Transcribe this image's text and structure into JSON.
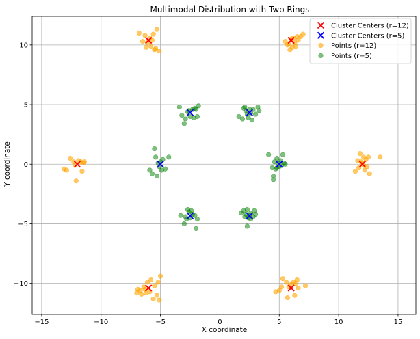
{
  "chart_data": {
    "type": "scatter",
    "title": "Multimodal Distribution with Two Rings",
    "xlabel": "X coordinate",
    "ylabel": "Y coordinate",
    "xlim": [
      -15.8,
      16.5
    ],
    "ylim": [
      -12.6,
      12.4
    ],
    "xticks": [
      -15,
      -10,
      -5,
      0,
      5,
      10,
      15
    ],
    "yticks": [
      -10,
      -5,
      0,
      5,
      10
    ],
    "grid": true,
    "legend_position": "upper right",
    "series": [
      {
        "name": "Cluster Centers (r=12)",
        "marker": "x",
        "color": "#ff0000",
        "points": [
          [
            12,
            0
          ],
          [
            6,
            10.39
          ],
          [
            -6,
            10.39
          ],
          [
            -12,
            0
          ],
          [
            -6,
            -10.39
          ],
          [
            6,
            -10.39
          ]
        ]
      },
      {
        "name": "Cluster Centers (r=5)",
        "marker": "x",
        "color": "#0000ff",
        "points": [
          [
            5,
            0
          ],
          [
            2.5,
            4.33
          ],
          [
            -2.5,
            4.33
          ],
          [
            -5,
            0
          ],
          [
            -2.5,
            -4.33
          ],
          [
            2.5,
            -4.33
          ]
        ]
      },
      {
        "name": "Points (r=12)",
        "marker": "o",
        "color": "#ffa500",
        "alpha": 0.6,
        "points": [
          [
            11.4,
            -0.6
          ],
          [
            11.7,
            -0.3
          ],
          [
            11.9,
            0.2
          ],
          [
            12.1,
            -0.1
          ],
          [
            12.3,
            0.4
          ],
          [
            11.8,
            0.9
          ],
          [
            12.5,
            0.6
          ],
          [
            12.2,
            -0.5
          ],
          [
            12.6,
            -0.8
          ],
          [
            13.5,
            0.6
          ],
          [
            12.0,
            0.1
          ],
          [
            11.6,
            0.3
          ],
          [
            12.4,
            -0.2
          ],
          [
            12.1,
            0.6
          ],
          [
            5.5,
            10.3
          ],
          [
            5.7,
            10.0
          ],
          [
            5.9,
            9.6
          ],
          [
            6.1,
            9.8
          ],
          [
            6.3,
            10.2
          ],
          [
            6.6,
            10.4
          ],
          [
            6.8,
            10.7
          ],
          [
            6.2,
            10.6
          ],
          [
            5.8,
            10.1
          ],
          [
            6.4,
            9.9
          ],
          [
            7.0,
            10.9
          ],
          [
            6.0,
            10.5
          ],
          [
            6.5,
            10.7
          ],
          [
            -6.8,
            11.0
          ],
          [
            -6.3,
            10.8
          ],
          [
            -5.9,
            10.6
          ],
          [
            -5.6,
            10.9
          ],
          [
            -5.3,
            11.3
          ],
          [
            -6.1,
            10.2
          ],
          [
            -5.8,
            9.9
          ],
          [
            -5.5,
            9.6
          ],
          [
            -5.1,
            9.5
          ],
          [
            -5.4,
            9.7
          ],
          [
            -6.5,
            10.3
          ],
          [
            -6.2,
            9.8
          ],
          [
            -5.7,
            10.4
          ],
          [
            -13.1,
            -0.4
          ],
          [
            -12.9,
            -0.5
          ],
          [
            -12.6,
            0.5
          ],
          [
            -12.3,
            0.2
          ],
          [
            -11.7,
            0.2
          ],
          [
            -11.5,
            0.1
          ],
          [
            -11.6,
            -0.6
          ],
          [
            -12.1,
            -1.4
          ],
          [
            -11.9,
            0.3
          ],
          [
            -12.2,
            -0.1
          ],
          [
            -11.4,
            0.2
          ],
          [
            -7.0,
            -10.8
          ],
          [
            -6.7,
            -10.6
          ],
          [
            -6.4,
            -10.3
          ],
          [
            -6.1,
            -9.9
          ],
          [
            -5.8,
            -9.7
          ],
          [
            -5.5,
            -10.2
          ],
          [
            -5.2,
            -9.9
          ],
          [
            -5.0,
            -9.4
          ],
          [
            -5.3,
            -11.0
          ],
          [
            -5.1,
            -11.4
          ],
          [
            -5.6,
            -11.3
          ],
          [
            -6.2,
            -10.8
          ],
          [
            -6.6,
            -10.9
          ],
          [
            -6.9,
            -10.5
          ],
          [
            -5.9,
            -10.7
          ],
          [
            -6.3,
            -10.5
          ],
          [
            4.7,
            -10.7
          ],
          [
            5.0,
            -10.6
          ],
          [
            5.2,
            -10.3
          ],
          [
            5.3,
            -9.6
          ],
          [
            5.6,
            -9.9
          ],
          [
            5.8,
            -10.3
          ],
          [
            6.0,
            -10.1
          ],
          [
            6.2,
            -9.9
          ],
          [
            6.4,
            -10.0
          ],
          [
            6.6,
            -10.4
          ],
          [
            7.2,
            -10.2
          ],
          [
            6.3,
            -11.0
          ],
          [
            5.7,
            -11.2
          ],
          [
            6.5,
            -9.7
          ]
        ]
      },
      {
        "name": "Points (r=5)",
        "marker": "o",
        "color": "#008000",
        "alpha": 0.5,
        "points": [
          [
            4.1,
            0.8
          ],
          [
            4.4,
            -0.3
          ],
          [
            4.5,
            -1.0
          ],
          [
            4.6,
            0.2
          ],
          [
            4.7,
            -0.4
          ],
          [
            4.8,
            0.5
          ],
          [
            4.9,
            0.1
          ],
          [
            5.0,
            -0.2
          ],
          [
            5.1,
            0.3
          ],
          [
            5.2,
            -0.1
          ],
          [
            5.3,
            0.8
          ],
          [
            5.4,
            0.1
          ],
          [
            5.5,
            0.0
          ],
          [
            4.8,
            -0.3
          ],
          [
            4.5,
            -1.3
          ],
          [
            1.6,
            4.0
          ],
          [
            1.9,
            3.8
          ],
          [
            2.0,
            4.7
          ],
          [
            2.2,
            4.5
          ],
          [
            2.3,
            4.2
          ],
          [
            2.4,
            3.9
          ],
          [
            2.5,
            4.6
          ],
          [
            2.6,
            4.3
          ],
          [
            2.7,
            3.7
          ],
          [
            2.8,
            4.6
          ],
          [
            3.0,
            4.2
          ],
          [
            3.2,
            4.8
          ],
          [
            3.3,
            4.5
          ],
          [
            2.1,
            4.8
          ],
          [
            -3.4,
            4.8
          ],
          [
            -3.2,
            4.1
          ],
          [
            -3.0,
            3.4
          ],
          [
            -2.9,
            3.8
          ],
          [
            -2.7,
            4.4
          ],
          [
            -2.5,
            4.0
          ],
          [
            -2.3,
            4.6
          ],
          [
            -2.1,
            4.7
          ],
          [
            -1.9,
            4.0
          ],
          [
            -1.8,
            4.9
          ],
          [
            -2.2,
            3.9
          ],
          [
            -2.6,
            4.5
          ],
          [
            -2.0,
            4.6
          ],
          [
            -5.5,
            1.3
          ],
          [
            -5.4,
            0.6
          ],
          [
            -5.2,
            0.1
          ],
          [
            -5.1,
            -0.2
          ],
          [
            -4.8,
            0.4
          ],
          [
            -4.6,
            -0.4
          ],
          [
            -4.9,
            -0.5
          ],
          [
            -5.3,
            -1.0
          ],
          [
            -5.7,
            -0.8
          ],
          [
            -5.9,
            -0.5
          ],
          [
            -4.3,
            0.6
          ],
          [
            -5.0,
            0.2
          ],
          [
            -3.3,
            -4.3
          ],
          [
            -3.0,
            -5.0
          ],
          [
            -2.8,
            -4.6
          ],
          [
            -2.7,
            -3.8
          ],
          [
            -2.6,
            -4.0
          ],
          [
            -2.5,
            -4.5
          ],
          [
            -2.3,
            -4.2
          ],
          [
            -2.1,
            -4.3
          ],
          [
            -2.0,
            -5.4
          ],
          [
            -1.9,
            -4.6
          ],
          [
            -2.9,
            -4.4
          ],
          [
            -2.4,
            -3.9
          ],
          [
            1.8,
            -4.1
          ],
          [
            2.0,
            -3.9
          ],
          [
            2.2,
            -4.2
          ],
          [
            2.3,
            -3.8
          ],
          [
            2.4,
            -4.5
          ],
          [
            2.5,
            -4.3
          ],
          [
            2.6,
            -4.1
          ],
          [
            2.8,
            -4.4
          ],
          [
            2.9,
            -3.9
          ],
          [
            3.0,
            -4.2
          ],
          [
            2.3,
            -5.2
          ],
          [
            2.6,
            -4.6
          ],
          [
            2.1,
            -4.4
          ]
        ]
      }
    ]
  }
}
